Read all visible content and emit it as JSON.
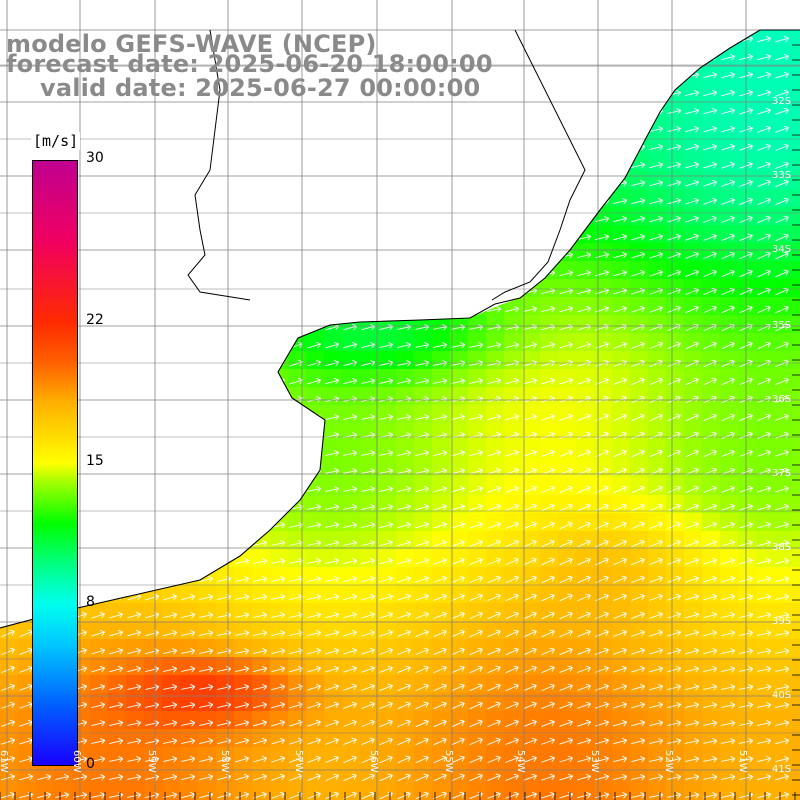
{
  "title": {
    "line1": "modelo GEFS-WAVE (NCEP)",
    "line2": "forecast date: 2025-06-20 18:00:00",
    "line3": "valid date: 2025-06-27 00:00:00"
  },
  "colorbar": {
    "unit": "[m/s]",
    "min": 0,
    "max": 30,
    "ticks": [
      "30",
      "22",
      "15",
      "8",
      "0"
    ],
    "tick_values": [
      30,
      22,
      15,
      8,
      0
    ],
    "stops": [
      {
        "v": 0,
        "c": "#1a00ff"
      },
      {
        "v": 3,
        "c": "#0060ff"
      },
      {
        "v": 6,
        "c": "#00c8ff"
      },
      {
        "v": 8,
        "c": "#00ffee"
      },
      {
        "v": 10,
        "c": "#00ff80"
      },
      {
        "v": 12,
        "c": "#00ff00"
      },
      {
        "v": 14,
        "c": "#a0ff00"
      },
      {
        "v": 15,
        "c": "#ffff00"
      },
      {
        "v": 18,
        "c": "#ffb000"
      },
      {
        "v": 20,
        "c": "#ff6000"
      },
      {
        "v": 22,
        "c": "#ff2a00"
      },
      {
        "v": 26,
        "c": "#f00060"
      },
      {
        "v": 30,
        "c": "#c00090"
      }
    ]
  },
  "map": {
    "lat_labels": [
      "32S",
      "33S",
      "34S",
      "35S",
      "36S",
      "37S",
      "38S",
      "39S",
      "40S",
      "41S"
    ],
    "lon_labels": [
      "61W",
      "60W",
      "59W",
      "58W",
      "57W",
      "56W",
      "55W",
      "54W",
      "53W",
      "52W",
      "51W"
    ],
    "land_color": "#ffffff",
    "coast_color": "#000000",
    "grid_color": "#808080",
    "arrow_color": "#ffffff",
    "wind_direction": "southwest-to-northeast"
  }
}
